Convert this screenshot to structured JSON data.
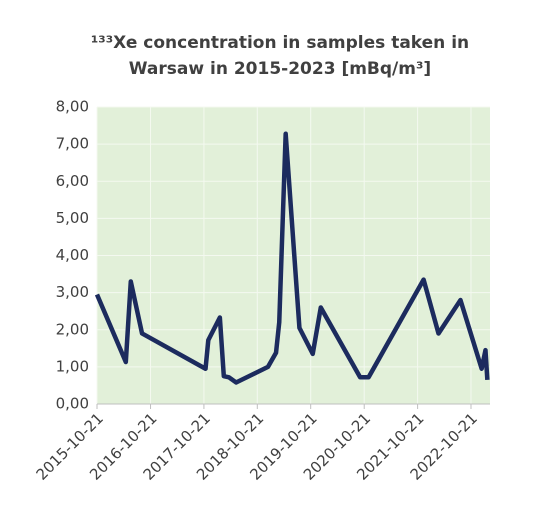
{
  "chart_data": {
    "type": "line",
    "title": "¹³³Xe concentration in samples taken in Warsaw in 2015-2023 [mBq/m³]",
    "x": [
      "2015-10-21",
      "2016-05-05",
      "2016-06-08",
      "2016-08-24",
      "2017-11-01",
      "2017-11-20",
      "2018-02-07",
      "2018-03-06",
      "2018-04-10",
      "2018-05-29",
      "2019-01-02",
      "2019-02-26",
      "2019-03-20",
      "2019-05-03",
      "2019-08-05",
      "2019-11-04",
      "2019-12-29",
      "2020-09-23",
      "2020-11-20",
      "2021-12-01",
      "2022-03-13",
      "2022-08-10",
      "2023-01-02",
      "2023-01-28",
      "2023-02-10"
    ],
    "series": [
      {
        "name": "133Xe",
        "color": "#1c2b5e",
        "values": [
          2.95,
          1.13,
          3.3,
          1.9,
          0.95,
          1.72,
          2.33,
          0.75,
          0.72,
          0.58,
          1.0,
          1.38,
          2.2,
          7.28,
          2.05,
          1.35,
          2.6,
          0.72,
          0.72,
          3.35,
          1.9,
          2.8,
          0.95,
          1.45,
          0.65
        ]
      }
    ],
    "xlim": [
      "2015-10-21",
      "2023-02-28"
    ],
    "xticks": [
      "2015-10-21",
      "2016-10-21",
      "2017-10-21",
      "2018-10-21",
      "2019-10-21",
      "2020-10-21",
      "2021-10-21",
      "2022-10-21"
    ],
    "ylim": [
      0,
      8
    ],
    "yticks": [
      {
        "value": 0,
        "label": "0,00"
      },
      {
        "value": 1,
        "label": "1,00"
      },
      {
        "value": 2,
        "label": "2,00"
      },
      {
        "value": 3,
        "label": "3,00"
      },
      {
        "value": 4,
        "label": "4,00"
      },
      {
        "value": 5,
        "label": "5,00"
      },
      {
        "value": 6,
        "label": "6,00"
      },
      {
        "value": 7,
        "label": "7,00"
      },
      {
        "value": 8,
        "label": "8,00"
      }
    ],
    "grid": true,
    "plot_background": "#e2f0d9"
  }
}
